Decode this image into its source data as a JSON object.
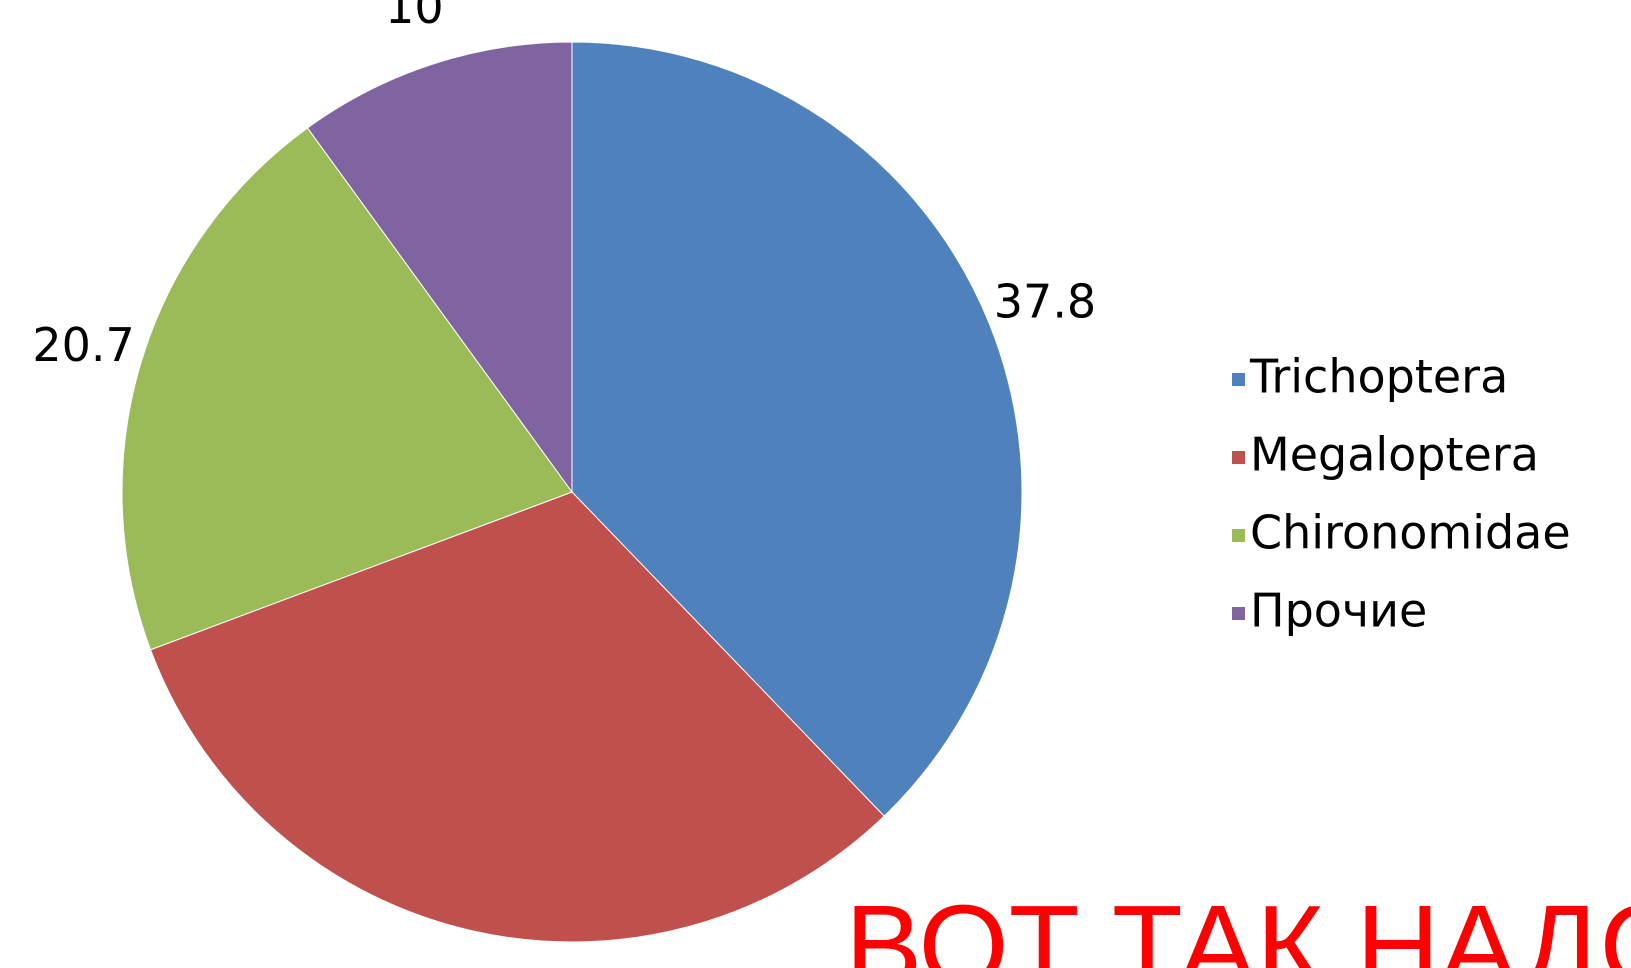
{
  "chart_data": {
    "type": "pie",
    "categories": [
      "Trichoptera",
      "Megaloptera",
      "Chironomidae",
      "Прочие"
    ],
    "values": [
      37.8,
      31.5,
      20.7,
      10
    ],
    "colors": [
      "#4f81bd",
      "#c0504d",
      "#9bbb59",
      "#8064a2"
    ],
    "legend": "right",
    "annotation": "ВОТ ТАК НАДО"
  }
}
